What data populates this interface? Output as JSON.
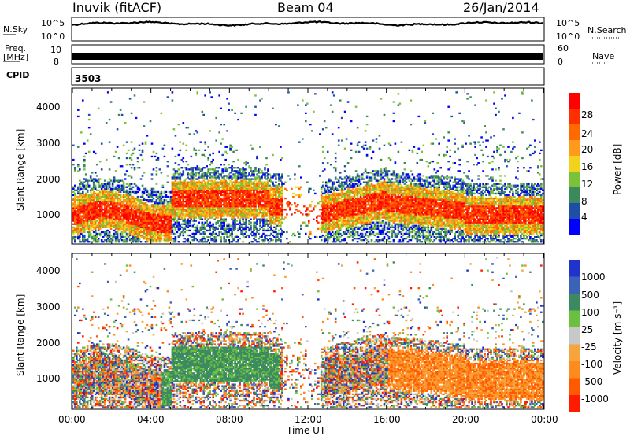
{
  "header": {
    "station": "Inuvik (fitACF)",
    "beam": "Beam 04",
    "date": "26/Jan/2014"
  },
  "strips": {
    "nsky_label": "N.Sky",
    "nsky_ticks": [
      "10^5",
      "10^0"
    ],
    "nsearch_label": "N.Search",
    "freq_label_1": "Freq.",
    "freq_label_2": "[MHz]",
    "freq_ticks": [
      "10",
      "8"
    ],
    "nave_ticks": [
      "60",
      "0"
    ],
    "nave_label": "Nave",
    "cpid_label": "CPID",
    "cpid_value": "3503"
  },
  "colors": {
    "power": [
      "#0000ff",
      "#1f4ea8",
      "#3c8a5c",
      "#79c23a",
      "#f2d21c",
      "#ff9a1a",
      "#ff6a00",
      "#ff3000",
      "#ff0000"
    ],
    "velocity": [
      "#2233cc",
      "#3c62b8",
      "#3d8a60",
      "#6cc040",
      "#c8c8c8",
      "#f5a53c",
      "#ff8a1e",
      "#ff5a00",
      "#ff1a00"
    ]
  },
  "chart_data": [
    {
      "type": "heatmap",
      "name": "power",
      "ylabel": "Slant Range [km]",
      "ylim": [
        180,
        4500
      ],
      "yticks": [
        "4000",
        "3000",
        "2000",
        "1000"
      ],
      "xlim": [
        "00:00",
        "24:00"
      ],
      "colorbar": {
        "label": "Power [dB]",
        "ticks": [
          "28",
          "24",
          "20",
          "16",
          "12",
          "8",
          "4"
        ],
        "range": [
          0,
          32
        ]
      }
    },
    {
      "type": "heatmap",
      "name": "velocity",
      "ylabel": "Slant Range [km]",
      "ylim": [
        180,
        4500
      ],
      "yticks": [
        "4000",
        "3000",
        "2000",
        "1000"
      ],
      "xlabel": "Time UT",
      "xticks": [
        "00:00",
        "04:00",
        "08:00",
        "12:00",
        "16:00",
        "20:00",
        "00:00"
      ],
      "colorbar": {
        "label": "Velocity [m s⁻¹]",
        "ticks": [
          "1000",
          "500",
          "100",
          "25",
          "-25",
          "-100",
          "-500",
          "-1000"
        ]
      }
    }
  ]
}
